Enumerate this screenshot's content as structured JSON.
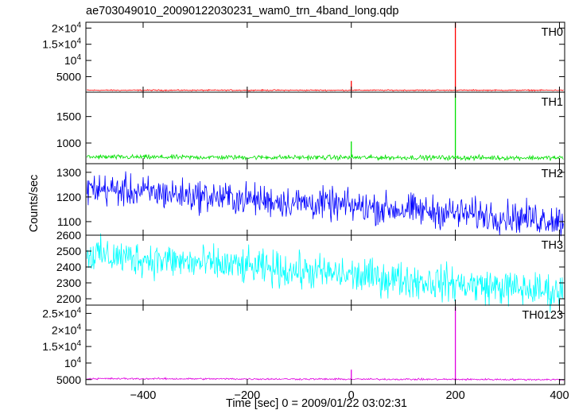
{
  "title": "ae703049010_20090122030231_wam0_trn_4band_long.qdp",
  "chart_data": {
    "type": "line",
    "title": "ae703049010_20090122030231_wam0_trn_4band_long.qdp",
    "xlabel": "Time [sec] 0 = 2009/01/22 03:02:31",
    "ylabel": "Counts/sec",
    "xlim": [
      -510,
      410
    ],
    "x_ticks": [
      -400,
      -200,
      0,
      200,
      400
    ],
    "x_tick_labels": [
      "−400",
      "−200",
      "0",
      "200",
      "400"
    ],
    "grid": false,
    "panels": [
      {
        "name": "TH0",
        "color": "#ff0000",
        "ylim": [
          200,
          21800
        ],
        "y_ticks": [
          5000,
          10000,
          15000,
          20000
        ],
        "y_tick_labels": [
          {
            "mantissa": "5000",
            "exp": ""
          },
          {
            "mantissa": "10",
            "exp": "4"
          },
          {
            "mantissa": "1.5×10",
            "exp": "4"
          },
          {
            "mantissa": "2×10",
            "exp": "4"
          }
        ],
        "baseline": 800,
        "noise": 90,
        "trend": 0,
        "spikes": [
          {
            "x": 0,
            "y": 3700
          },
          {
            "x": 200,
            "y": 21500
          }
        ]
      },
      {
        "name": "TH1",
        "color": "#00e000",
        "ylim": [
          610,
          1960
        ],
        "y_ticks": [
          1000,
          1500
        ],
        "y_tick_labels": [
          {
            "mantissa": "1000",
            "exp": ""
          },
          {
            "mantissa": "1500",
            "exp": ""
          }
        ],
        "baseline": 735,
        "noise": 22,
        "trend": -15,
        "spikes": [
          {
            "x": 0,
            "y": 1030
          },
          {
            "x": 200,
            "y": 1930
          }
        ]
      },
      {
        "name": "TH2",
        "color": "#0000ff",
        "ylim": [
          1045,
          1335
        ],
        "y_ticks": [
          1100,
          1200,
          1300
        ],
        "y_tick_labels": [
          {
            "mantissa": "1100",
            "exp": ""
          },
          {
            "mantissa": "1200",
            "exp": ""
          },
          {
            "mantissa": "1300",
            "exp": ""
          }
        ],
        "baseline": 1235,
        "noise": 32,
        "trend": -130,
        "spikes": []
      },
      {
        "name": "TH3",
        "color": "#00ffff",
        "ylim": [
          2160,
          2600
        ],
        "y_ticks": [
          2200,
          2300,
          2400,
          2500,
          2600
        ],
        "y_tick_labels": [
          {
            "mantissa": "2200",
            "exp": ""
          },
          {
            "mantissa": "2300",
            "exp": ""
          },
          {
            "mantissa": "2400",
            "exp": ""
          },
          {
            "mantissa": "2500",
            "exp": ""
          },
          {
            "mantissa": "2600",
            "exp": ""
          }
        ],
        "baseline": 2480,
        "noise": 55,
        "trend": -240,
        "spikes": []
      },
      {
        "name": "TH0123",
        "color": "#e000e0",
        "ylim": [
          3500,
          27500
        ],
        "y_ticks": [
          5000,
          10000,
          15000,
          20000,
          25000
        ],
        "y_tick_labels": [
          {
            "mantissa": "5000",
            "exp": ""
          },
          {
            "mantissa": "10",
            "exp": "4"
          },
          {
            "mantissa": "1.5×10",
            "exp": "4"
          },
          {
            "mantissa": "2×10",
            "exp": "4"
          },
          {
            "mantissa": "2.5×10",
            "exp": "4"
          }
        ],
        "baseline": 5300,
        "noise": 130,
        "trend": -300,
        "spikes": [
          {
            "x": 0,
            "y": 8000
          },
          {
            "x": 200,
            "y": 27000
          }
        ]
      }
    ]
  }
}
